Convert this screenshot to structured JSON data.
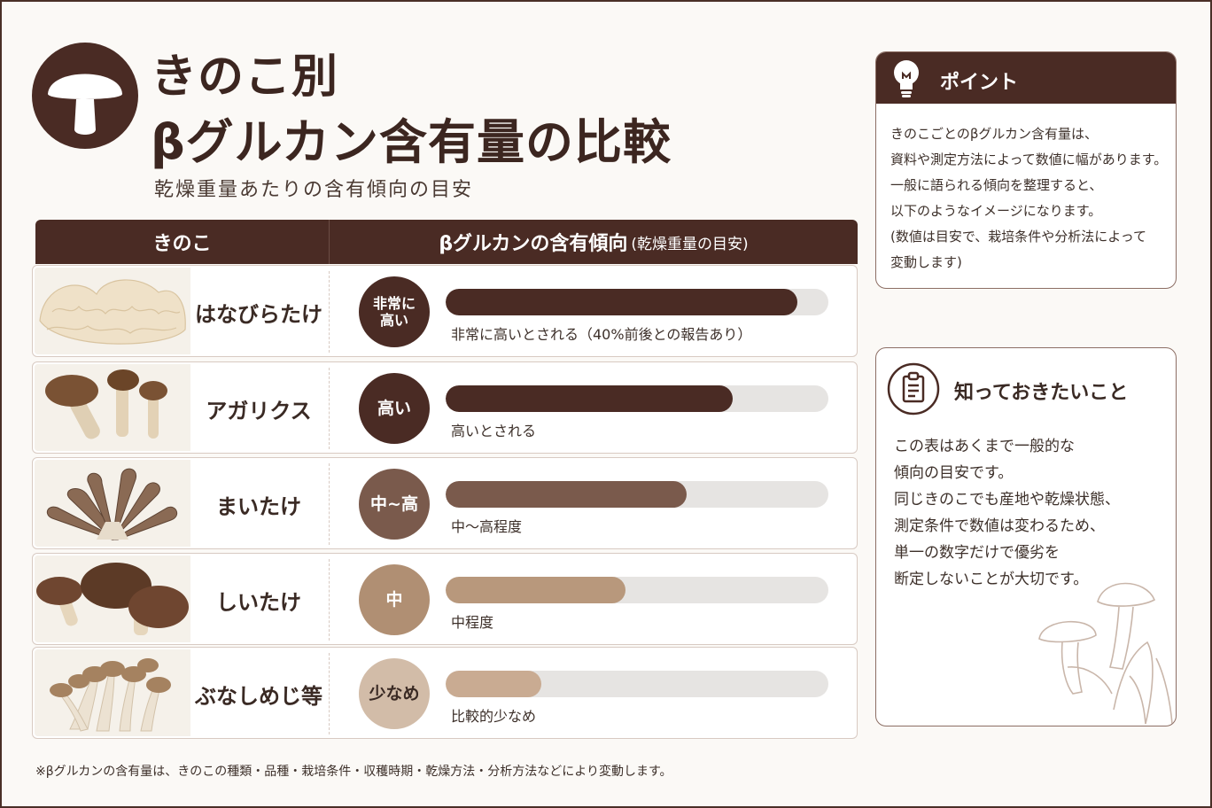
{
  "header": {
    "title_line1": "きのこ別",
    "title_line2": "βグルカン含有量の比較",
    "subtitle": "乾燥重量あたりの含有傾向の目安"
  },
  "table": {
    "col_kinoko": "きのこ",
    "col_trend": "βグルカンの含有傾向",
    "col_trend_note": "(乾燥重量の目安)"
  },
  "colors": {
    "brand_dark": "#4a2b24",
    "track": "#e6e4e2"
  },
  "chart_data": {
    "type": "bar",
    "title": "βグルカン含有量の比較",
    "categories": [
      "はなびらたけ",
      "アガリクス",
      "まいたけ",
      "しいたけ",
      "ぶなしめじ等"
    ],
    "levels": [
      "非常に高い",
      "高い",
      "中~高",
      "中",
      "少なめ"
    ],
    "level_badges": [
      "非常に\n高い",
      "高い",
      "中~高",
      "中",
      "少なめ"
    ],
    "values": [
      0.92,
      0.75,
      0.63,
      0.47,
      0.25
    ],
    "value_scale": "relative fraction of bar track (illustrative, no axis)",
    "descriptions": [
      "非常に高いとされる（40%前後との報告あり）",
      "高いとされる",
      "中～高程度",
      "中程度",
      "比較的少なめ"
    ],
    "bar_colors": [
      "#4a2b24",
      "#4a2b24",
      "#7a5a4c",
      "#b8987c",
      "#c9ab92"
    ],
    "badge_colors": [
      "#4a2b24",
      "#4a2b24",
      "#7a5a4c",
      "#b08f73",
      "#d2bca8"
    ],
    "badge_text_colors": [
      "#ffffff",
      "#ffffff",
      "#ffffff",
      "#ffffff",
      "#3a2a24"
    ],
    "images": [
      "hanabiratake-photo",
      "agaricus-photo",
      "maitake-photo",
      "shiitake-photo",
      "bunashimeji-photo"
    ],
    "ylim": [
      0,
      1
    ]
  },
  "footnote": "※βグルカンの含有量は、きのこの種類・品種・栽培条件・収穫時期・乾燥方法・分析方法などにより変動します。",
  "point_card": {
    "title": "ポイント",
    "icon": "lightbulb-icon",
    "lines": [
      "きのこごとのβグルカン含有量は、",
      "資料や測定方法によって数値に幅があります。",
      "一般に語られる傾向を整理すると、",
      "以下のようなイメージになります。",
      "(数値は目安で、栽培条件や分析法によって",
      "変動します)"
    ]
  },
  "know_card": {
    "title": "知っておきたいこと",
    "icon": "clipboard-icon",
    "lines": [
      "この表はあくまで一般的な",
      "傾向の目安です。",
      "同じきのこでも産地や乾燥状態、",
      "測定条件で数値は変わるため、",
      "単一の数字だけで優劣を",
      "断定しないことが大切です。"
    ]
  }
}
